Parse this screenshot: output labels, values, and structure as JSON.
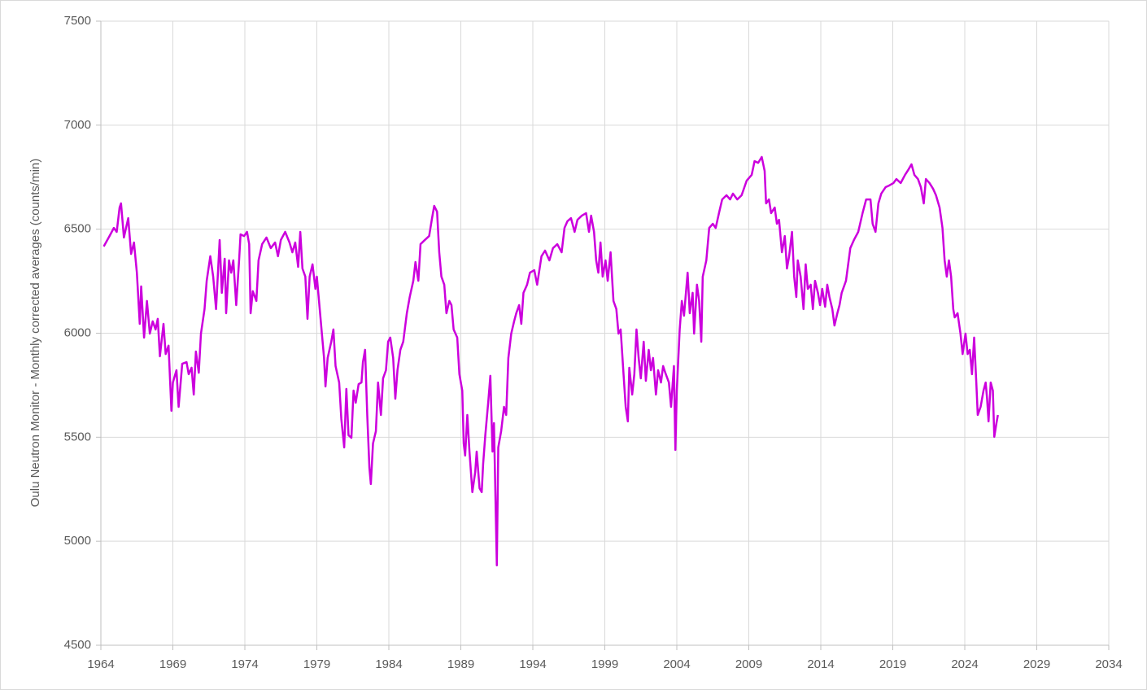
{
  "chart_data": {
    "type": "line",
    "y_label": "Oulu Neutron Monitor - Monthly corrected averages (counts/min)",
    "xlim": [
      1964,
      2034
    ],
    "xticks": [
      1964,
      1969,
      1974,
      1979,
      1984,
      1989,
      1994,
      1999,
      2004,
      2009,
      2014,
      2019,
      2024,
      2029,
      2034
    ],
    "ylim": [
      4500,
      7500
    ],
    "yticks": [
      4500,
      5000,
      5500,
      6000,
      6500,
      7000,
      7500
    ],
    "grid": true,
    "x": [
      1964.2,
      1964.6,
      1964.9,
      1965.1,
      1965.3,
      1965.4,
      1965.6,
      1965.9,
      1966.1,
      1966.3,
      1966.5,
      1966.7,
      1966.8,
      1967.0,
      1967.2,
      1967.4,
      1967.6,
      1967.8,
      1967.95,
      1968.1,
      1968.35,
      1968.5,
      1968.7,
      1968.9,
      1969.0,
      1969.25,
      1969.4,
      1969.65,
      1969.95,
      1970.1,
      1970.3,
      1970.45,
      1970.6,
      1970.8,
      1970.95,
      1971.2,
      1971.35,
      1971.6,
      1971.8,
      1972.0,
      1972.25,
      1972.4,
      1972.6,
      1972.7,
      1972.9,
      1973.05,
      1973.2,
      1973.4,
      1973.6,
      1973.7,
      1973.95,
      1974.15,
      1974.3,
      1974.4,
      1974.55,
      1974.8,
      1974.95,
      1975.2,
      1975.5,
      1975.8,
      1976.1,
      1976.3,
      1976.5,
      1976.8,
      1977.1,
      1977.3,
      1977.5,
      1977.7,
      1977.85,
      1978.0,
      1978.2,
      1978.35,
      1978.5,
      1978.7,
      1978.9,
      1979.0,
      1979.2,
      1979.35,
      1979.5,
      1979.6,
      1979.75,
      1980.0,
      1980.15,
      1980.3,
      1980.55,
      1980.7,
      1980.9,
      1981.05,
      1981.2,
      1981.4,
      1981.55,
      1981.7,
      1981.9,
      1982.1,
      1982.2,
      1982.35,
      1982.5,
      1982.65,
      1982.75,
      1982.9,
      1983.1,
      1983.25,
      1983.45,
      1983.6,
      1983.8,
      1983.95,
      1984.1,
      1984.3,
      1984.45,
      1984.6,
      1984.8,
      1985.0,
      1985.25,
      1985.45,
      1985.7,
      1985.85,
      1986.05,
      1986.2,
      1986.5,
      1986.8,
      1987.0,
      1987.15,
      1987.35,
      1987.5,
      1987.65,
      1987.85,
      1988.0,
      1988.2,
      1988.35,
      1988.5,
      1988.75,
      1988.9,
      1989.1,
      1989.2,
      1989.3,
      1989.45,
      1989.6,
      1989.8,
      1990.0,
      1990.1,
      1990.3,
      1990.45,
      1990.55,
      1990.7,
      1990.9,
      1991.05,
      1991.2,
      1991.3,
      1991.5,
      1991.6,
      1991.8,
      1992.0,
      1992.15,
      1992.3,
      1992.5,
      1992.7,
      1992.85,
      1993.05,
      1993.2,
      1993.35,
      1993.6,
      1993.8,
      1994.1,
      1994.3,
      1994.6,
      1994.85,
      1995.15,
      1995.4,
      1995.7,
      1996.0,
      1996.2,
      1996.4,
      1996.65,
      1996.9,
      1997.1,
      1997.4,
      1997.7,
      1997.9,
      1998.05,
      1998.25,
      1998.4,
      1998.55,
      1998.7,
      1998.85,
      1999.05,
      1999.2,
      1999.4,
      1999.6,
      1999.8,
      1999.95,
      2000.1,
      2000.3,
      2000.45,
      2000.6,
      2000.7,
      2000.9,
      2001.05,
      2001.2,
      2001.35,
      2001.5,
      2001.7,
      2001.85,
      2002.05,
      2002.2,
      2002.35,
      2002.55,
      2002.7,
      2002.9,
      2003.05,
      2003.2,
      2003.45,
      2003.6,
      2003.8,
      2003.9,
      2004.0,
      2004.2,
      2004.35,
      2004.5,
      2004.75,
      2004.9,
      2005.1,
      2005.2,
      2005.4,
      2005.55,
      2005.7,
      2005.8,
      2006.05,
      2006.25,
      2006.5,
      2006.7,
      2006.95,
      2007.15,
      2007.45,
      2007.7,
      2007.9,
      2008.2,
      2008.5,
      2008.85,
      2009.2,
      2009.4,
      2009.65,
      2009.9,
      2010.1,
      2010.2,
      2010.4,
      2010.55,
      2010.8,
      2010.95,
      2011.1,
      2011.3,
      2011.5,
      2011.65,
      2011.8,
      2012.0,
      2012.15,
      2012.3,
      2012.4,
      2012.6,
      2012.8,
      2012.95,
      2013.1,
      2013.3,
      2013.45,
      2013.6,
      2013.8,
      2013.95,
      2014.1,
      2014.3,
      2014.45,
      2014.6,
      2014.8,
      2014.95,
      2015.15,
      2015.3,
      2015.45,
      2015.75,
      2016.05,
      2016.3,
      2016.6,
      2016.9,
      2017.15,
      2017.45,
      2017.6,
      2017.8,
      2018.0,
      2018.2,
      2018.5,
      2018.75,
      2019.05,
      2019.25,
      2019.55,
      2019.85,
      2020.1,
      2020.3,
      2020.5,
      2020.75,
      2020.95,
      2021.15,
      2021.3,
      2021.55,
      2021.8,
      2022.0,
      2022.25,
      2022.45,
      2022.6,
      2022.75,
      2022.9,
      2023.05,
      2023.2,
      2023.3,
      2023.5,
      2023.7,
      2023.85,
      2024.05,
      2024.2,
      2024.35,
      2024.5,
      2024.65,
      2024.8,
      2024.9,
      2025.1,
      2025.3,
      2025.45,
      2025.55,
      2025.65,
      2025.8,
      2025.95,
      2026.05,
      2026.2,
      2026.3
    ],
    "series": [
      {
        "color": "#cc00dd",
        "values": [
          6417,
          6467,
          6506,
          6487,
          6604,
          6624,
          6460,
          6553,
          6381,
          6436,
          6291,
          6045,
          6225,
          5979,
          6155,
          5998,
          6057,
          6018,
          6069,
          5889,
          6045,
          5900,
          5940,
          5627,
          5763,
          5822,
          5646,
          5853,
          5861,
          5803,
          5834,
          5705,
          5912,
          5810,
          5998,
          6116,
          6252,
          6370,
          6272,
          6116,
          6448,
          6194,
          6358,
          6096,
          6350,
          6291,
          6350,
          6135,
          6350,
          6475,
          6467,
          6487,
          6428,
          6096,
          6202,
          6155,
          6350,
          6428,
          6460,
          6409,
          6436,
          6370,
          6448,
          6487,
          6436,
          6389,
          6436,
          6319,
          6487,
          6311,
          6272,
          6069,
          6272,
          6331,
          6213,
          6272,
          6116,
          5998,
          5881,
          5744,
          5881,
          5959,
          6018,
          5842,
          5763,
          5588,
          5451,
          5732,
          5510,
          5497,
          5724,
          5666,
          5755,
          5763,
          5861,
          5920,
          5607,
          5353,
          5275,
          5470,
          5529,
          5763,
          5607,
          5783,
          5822,
          5959,
          5979,
          5881,
          5685,
          5822,
          5920,
          5959,
          6096,
          6174,
          6252,
          6342,
          6252,
          6428,
          6448,
          6467,
          6553,
          6612,
          6584,
          6389,
          6272,
          6233,
          6096,
          6155,
          6135,
          6018,
          5979,
          5803,
          5724,
          5470,
          5412,
          5607,
          5431,
          5236,
          5333,
          5431,
          5255,
          5236,
          5372,
          5510,
          5666,
          5795,
          5431,
          5568,
          4884,
          5451,
          5529,
          5646,
          5607,
          5881,
          5998,
          6057,
          6096,
          6135,
          6045,
          6194,
          6233,
          6291,
          6303,
          6233,
          6370,
          6397,
          6350,
          6409,
          6428,
          6389,
          6506,
          6538,
          6553,
          6487,
          6545,
          6565,
          6577,
          6487,
          6565,
          6487,
          6350,
          6291,
          6436,
          6272,
          6350,
          6252,
          6389,
          6155,
          6116,
          5998,
          6018,
          5803,
          5646,
          5576,
          5834,
          5705,
          5803,
          6018,
          5881,
          5783,
          5959,
          5771,
          5920,
          5822,
          5881,
          5705,
          5822,
          5763,
          5842,
          5810,
          5763,
          5646,
          5842,
          5439,
          5724,
          6018,
          6155,
          6084,
          6291,
          6096,
          6194,
          5998,
          6233,
          6155,
          5959,
          6272,
          6350,
          6506,
          6526,
          6506,
          6584,
          6643,
          6663,
          6643,
          6671,
          6643,
          6663,
          6733,
          6761,
          6827,
          6819,
          6847,
          6780,
          6624,
          6643,
          6577,
          6604,
          6526,
          6545,
          6389,
          6467,
          6311,
          6370,
          6487,
          6272,
          6174,
          6350,
          6272,
          6116,
          6331,
          6213,
          6233,
          6116,
          6252,
          6194,
          6135,
          6213,
          6127,
          6233,
          6174,
          6116,
          6037,
          6096,
          6135,
          6194,
          6252,
          6409,
          6448,
          6487,
          6577,
          6643,
          6643,
          6526,
          6487,
          6624,
          6671,
          6702,
          6710,
          6722,
          6741,
          6722,
          6761,
          6788,
          6812,
          6761,
          6741,
          6702,
          6624,
          6741,
          6722,
          6694,
          6663,
          6604,
          6506,
          6350,
          6272,
          6350,
          6272,
          6116,
          6076,
          6096,
          5998,
          5900,
          5998,
          5900,
          5920,
          5803,
          5979,
          5763,
          5607,
          5646,
          5724,
          5763,
          5685,
          5576,
          5763,
          5724,
          5502,
          5568,
          5607
        ]
      }
    ]
  }
}
